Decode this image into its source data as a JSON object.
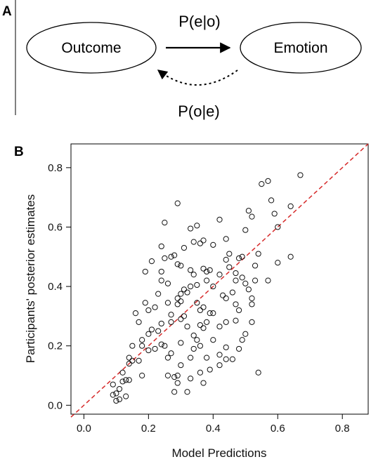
{
  "panel_a": {
    "label": "A",
    "nodes": {
      "outcome": "Outcome",
      "emotion": "Emotion"
    },
    "edges": {
      "forward": "P(e|o)",
      "backward": "P(o|e)"
    }
  },
  "panel_b": {
    "label": "B"
  },
  "chart_data": {
    "type": "scatter",
    "title": "",
    "xlabel": "Model Predictions",
    "ylabel": "Participants' posterior estimates",
    "xlim": [
      -0.04,
      0.88
    ],
    "ylim": [
      -0.03,
      0.88
    ],
    "xticks": [
      0.0,
      0.2,
      0.4,
      0.6,
      0.8
    ],
    "yticks": [
      0.0,
      0.2,
      0.4,
      0.6,
      0.8
    ],
    "xtick_labels": [
      "0.0",
      "0.2",
      "0.4",
      "0.6",
      "0.8"
    ],
    "ytick_labels": [
      "0.0",
      "0.2",
      "0.4",
      "0.6",
      "0.8"
    ],
    "marker": "open circle",
    "grid": false,
    "reference_line": {
      "style": "dashed",
      "color": "#d62a2a",
      "from": [
        -0.04,
        -0.04
      ],
      "to": [
        0.88,
        0.88
      ]
    },
    "series": [
      {
        "points": [
          [
            0.29,
            0.68
          ],
          [
            0.55,
            0.745
          ],
          [
            0.57,
            0.755
          ],
          [
            0.67,
            0.775
          ],
          [
            0.25,
            0.615
          ],
          [
            0.33,
            0.595
          ],
          [
            0.35,
            0.605
          ],
          [
            0.42,
            0.625
          ],
          [
            0.5,
            0.59
          ],
          [
            0.58,
            0.69
          ],
          [
            0.59,
            0.645
          ],
          [
            0.6,
            0.6
          ],
          [
            0.64,
            0.67
          ],
          [
            0.52,
            0.635
          ],
          [
            0.51,
            0.655
          ],
          [
            0.24,
            0.535
          ],
          [
            0.27,
            0.5
          ],
          [
            0.28,
            0.505
          ],
          [
            0.31,
            0.53
          ],
          [
            0.34,
            0.55
          ],
          [
            0.36,
            0.545
          ],
          [
            0.37,
            0.555
          ],
          [
            0.4,
            0.54
          ],
          [
            0.44,
            0.56
          ],
          [
            0.29,
            0.475
          ],
          [
            0.3,
            0.47
          ],
          [
            0.25,
            0.495
          ],
          [
            0.21,
            0.485
          ],
          [
            0.19,
            0.45
          ],
          [
            0.24,
            0.45
          ],
          [
            0.33,
            0.455
          ],
          [
            0.37,
            0.46
          ],
          [
            0.34,
            0.44
          ],
          [
            0.38,
            0.45
          ],
          [
            0.39,
            0.455
          ],
          [
            0.42,
            0.44
          ],
          [
            0.44,
            0.49
          ],
          [
            0.45,
            0.51
          ],
          [
            0.48,
            0.495
          ],
          [
            0.49,
            0.5
          ],
          [
            0.45,
            0.465
          ],
          [
            0.47,
            0.445
          ],
          [
            0.53,
            0.47
          ],
          [
            0.54,
            0.51
          ],
          [
            0.6,
            0.48
          ],
          [
            0.64,
            0.5
          ],
          [
            0.4,
            0.4
          ],
          [
            0.38,
            0.42
          ],
          [
            0.35,
            0.405
          ],
          [
            0.33,
            0.4
          ],
          [
            0.32,
            0.38
          ],
          [
            0.3,
            0.375
          ],
          [
            0.31,
            0.39
          ],
          [
            0.26,
            0.41
          ],
          [
            0.23,
            0.375
          ],
          [
            0.24,
            0.42
          ],
          [
            0.2,
            0.32
          ],
          [
            0.19,
            0.345
          ],
          [
            0.16,
            0.31
          ],
          [
            0.22,
            0.33
          ],
          [
            0.26,
            0.345
          ],
          [
            0.29,
            0.34
          ],
          [
            0.3,
            0.35
          ],
          [
            0.29,
            0.36
          ],
          [
            0.35,
            0.345
          ],
          [
            0.36,
            0.32
          ],
          [
            0.37,
            0.33
          ],
          [
            0.4,
            0.31
          ],
          [
            0.43,
            0.37
          ],
          [
            0.44,
            0.36
          ],
          [
            0.46,
            0.38
          ],
          [
            0.47,
            0.42
          ],
          [
            0.49,
            0.43
          ],
          [
            0.5,
            0.41
          ],
          [
            0.51,
            0.39
          ],
          [
            0.47,
            0.34
          ],
          [
            0.48,
            0.32
          ],
          [
            0.52,
            0.36
          ],
          [
            0.52,
            0.34
          ],
          [
            0.53,
            0.42
          ],
          [
            0.57,
            0.42
          ],
          [
            0.21,
            0.255
          ],
          [
            0.23,
            0.25
          ],
          [
            0.2,
            0.24
          ],
          [
            0.24,
            0.275
          ],
          [
            0.27,
            0.28
          ],
          [
            0.3,
            0.29
          ],
          [
            0.31,
            0.3
          ],
          [
            0.27,
            0.305
          ],
          [
            0.32,
            0.265
          ],
          [
            0.34,
            0.235
          ],
          [
            0.35,
            0.22
          ],
          [
            0.36,
            0.27
          ],
          [
            0.37,
            0.26
          ],
          [
            0.38,
            0.28
          ],
          [
            0.39,
            0.31
          ],
          [
            0.42,
            0.265
          ],
          [
            0.44,
            0.28
          ],
          [
            0.47,
            0.285
          ],
          [
            0.49,
            0.22
          ],
          [
            0.5,
            0.24
          ],
          [
            0.52,
            0.28
          ],
          [
            0.18,
            0.22
          ],
          [
            0.17,
            0.28
          ],
          [
            0.15,
            0.2
          ],
          [
            0.18,
            0.2
          ],
          [
            0.2,
            0.185
          ],
          [
            0.22,
            0.19
          ],
          [
            0.24,
            0.205
          ],
          [
            0.25,
            0.2
          ],
          [
            0.26,
            0.16
          ],
          [
            0.27,
            0.175
          ],
          [
            0.3,
            0.21
          ],
          [
            0.34,
            0.19
          ],
          [
            0.36,
            0.2
          ],
          [
            0.4,
            0.22
          ],
          [
            0.42,
            0.17
          ],
          [
            0.44,
            0.195
          ],
          [
            0.46,
            0.155
          ],
          [
            0.48,
            0.19
          ],
          [
            0.38,
            0.16
          ],
          [
            0.33,
            0.16
          ],
          [
            0.14,
            0.16
          ],
          [
            0.14,
            0.14
          ],
          [
            0.15,
            0.15
          ],
          [
            0.17,
            0.15
          ],
          [
            0.18,
            0.1
          ],
          [
            0.12,
            0.11
          ],
          [
            0.13,
            0.085
          ],
          [
            0.12,
            0.08
          ],
          [
            0.11,
            0.055
          ],
          [
            0.1,
            0.04
          ],
          [
            0.09,
            0.035
          ],
          [
            0.09,
            0.07
          ],
          [
            0.11,
            0.02
          ],
          [
            0.1,
            0.015
          ],
          [
            0.13,
            0.03
          ],
          [
            0.26,
            0.1
          ],
          [
            0.28,
            0.095
          ],
          [
            0.29,
            0.075
          ],
          [
            0.28,
            0.045
          ],
          [
            0.3,
            0.135
          ],
          [
            0.32,
            0.045
          ],
          [
            0.33,
            0.09
          ],
          [
            0.36,
            0.11
          ],
          [
            0.37,
            0.075
          ],
          [
            0.39,
            0.12
          ],
          [
            0.42,
            0.135
          ],
          [
            0.44,
            0.155
          ],
          [
            0.54,
            0.11
          ],
          [
            0.29,
            0.1
          ],
          [
            0.14,
            0.085
          ]
        ]
      }
    ]
  }
}
